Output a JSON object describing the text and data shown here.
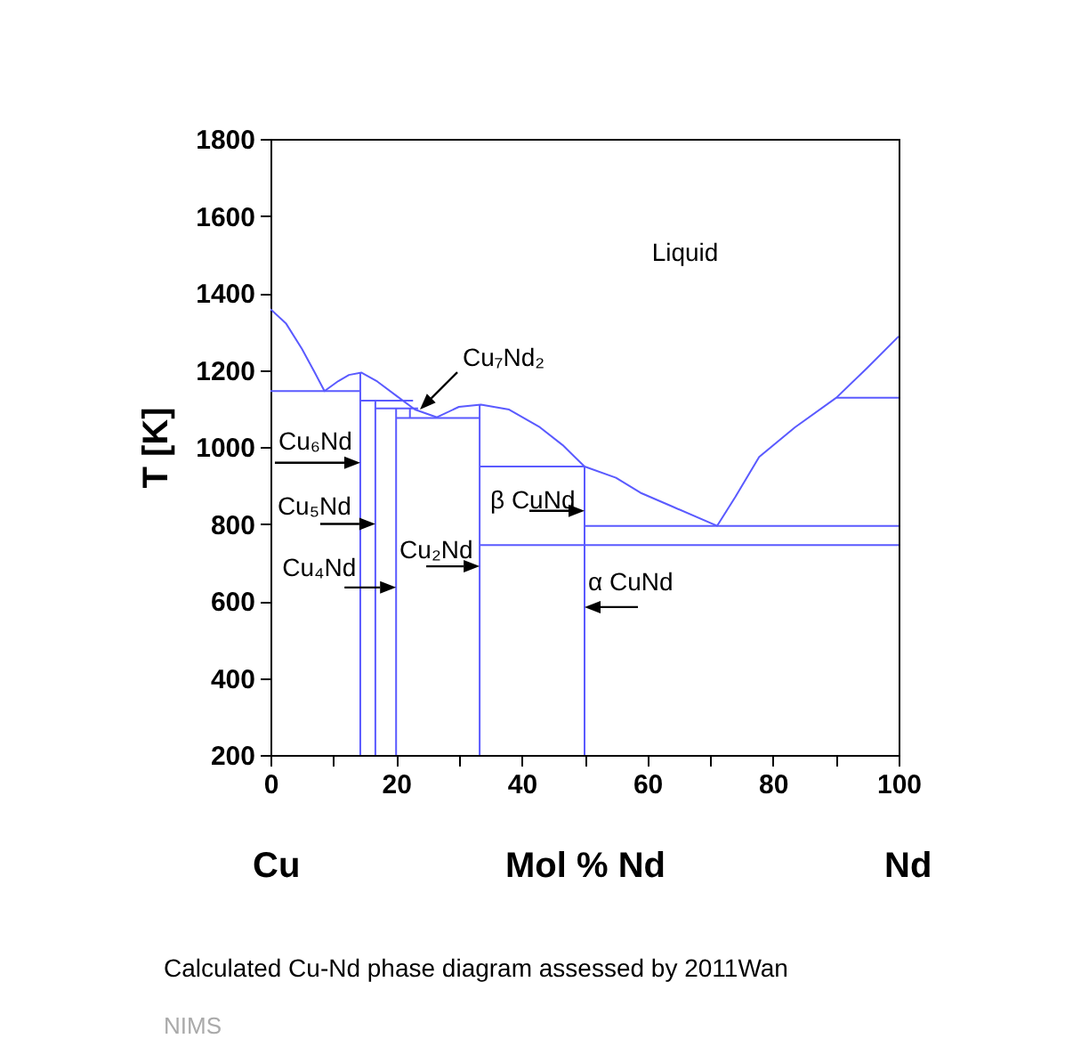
{
  "chart_data": {
    "type": "line",
    "xlabel": "Mol % Nd",
    "ylabel": "T [K]",
    "xlim": [
      0,
      100
    ],
    "ylim": [
      200,
      1800
    ],
    "xticks": [
      0,
      {
        "value": 10,
        "label": null
      },
      20,
      {
        "value": 30,
        "label": null
      },
      40,
      {
        "value": 50,
        "label": null
      },
      60,
      {
        "value": 70,
        "label": null
      },
      80,
      {
        "value": 90,
        "label": null
      },
      100
    ],
    "yticks": [
      200,
      400,
      600,
      800,
      1000,
      1200,
      1400,
      1600,
      1800
    ],
    "series": [
      {
        "color": "#5a5aff",
        "x": [
          0,
          2.5,
          5,
          7,
          8.6,
          10.8,
          12.5,
          14.5,
          17,
          20.2,
          23,
          26.5,
          30,
          33.5,
          38,
          42.9,
          46.5,
          50,
          55,
          58.9,
          64,
          71.1,
          74,
          77.8,
          83.5,
          90.1,
          95,
          100
        ],
        "values": [
          1358,
          1320,
          1255,
          1195,
          1145,
          1171,
          1187,
          1193,
          1170,
          1131,
          1097,
          1077,
          1104,
          1110,
          1097,
          1051,
          1005,
          949,
          920,
          881,
          845,
          795,
          870,
          974,
          1051,
          1128,
          1205,
          1287
        ]
      },
      {
        "color": "#5a5aff",
        "x": [
          0,
          14.3
        ],
        "values": [
          1145,
          1145
        ]
      },
      {
        "color": "#5a5aff",
        "x": [
          14.3,
          14.3
        ],
        "values": [
          200,
          1193
        ]
      },
      {
        "color": "#5a5aff",
        "x": [
          14.3,
          22.7
        ],
        "values": [
          1120,
          1120
        ]
      },
      {
        "color": "#5a5aff",
        "x": [
          16.7,
          16.7
        ],
        "values": [
          200,
          1120
        ]
      },
      {
        "color": "#5a5aff",
        "x": [
          16.7,
          23.5
        ],
        "values": [
          1100,
          1100
        ]
      },
      {
        "color": "#5a5aff",
        "x": [
          20,
          20
        ],
        "values": [
          200,
          1100
        ]
      },
      {
        "color": "#5a5aff",
        "x": [
          22.2,
          22.2
        ],
        "values": [
          1075,
          1100
        ]
      },
      {
        "color": "#5a5aff",
        "x": [
          20,
          33.3
        ],
        "values": [
          1075,
          1075
        ]
      },
      {
        "color": "#5a5aff",
        "x": [
          33.3,
          33.3
        ],
        "values": [
          200,
          1110
        ]
      },
      {
        "color": "#5a5aff",
        "x": [
          33.3,
          50
        ],
        "values": [
          949,
          949
        ]
      },
      {
        "color": "#5a5aff",
        "x": [
          50,
          50
        ],
        "values": [
          200,
          949
        ]
      },
      {
        "color": "#5a5aff",
        "x": [
          50,
          100
        ],
        "values": [
          795,
          795
        ]
      },
      {
        "color": "#5a5aff",
        "x": [
          33.3,
          100
        ],
        "values": [
          745,
          745
        ]
      },
      {
        "color": "#5a5aff",
        "x": [
          90.1,
          100
        ],
        "values": [
          1128,
          1128
        ]
      }
    ],
    "annotations": [
      "Liquid",
      {
        "text": "Cu₆Nd",
        "x": 14.3,
        "y": 959
      },
      {
        "text": "Cu₅Nd",
        "x": 16.7,
        "y": 800
      },
      {
        "text": "Cu₄Nd",
        "x": 20,
        "y": 635
      },
      {
        "text": "Cu₂Nd",
        "x": 33.3,
        "y": 690
      },
      {
        "text": "β CuNd",
        "x": 50,
        "y": 834
      },
      {
        "text": "α CuNd",
        "x": 50,
        "y": 584
      },
      {
        "text": "Cu₇Nd₂",
        "x": 23.8,
        "y": 1097
      },
      "Cu",
      "Nd",
      "Calculated Cu-Nd phase diagram assessed by 2011Wan",
      "NIMS"
    ]
  }
}
